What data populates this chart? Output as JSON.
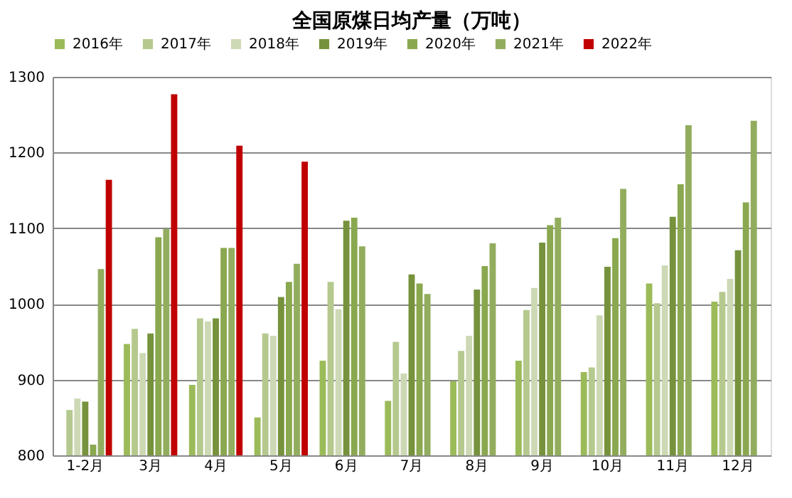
{
  "chart_data": {
    "type": "bar",
    "title": "全国原煤日均产量（万吨）",
    "categories": [
      "1-2月",
      "3月",
      "4月",
      "5月",
      "6月",
      "7月",
      "8月",
      "9月",
      "10月",
      "11月",
      "12月"
    ],
    "series": [
      {
        "name": "2016年",
        "color": "#9bbb59",
        "values": [
          null,
          947,
          893,
          850,
          925,
          872,
          898,
          925,
          910,
          1027,
          1003
        ]
      },
      {
        "name": "2017年",
        "color": "#b5c98e",
        "values": [
          860,
          967,
          981,
          961,
          1029,
          950,
          938,
          992,
          916,
          1001,
          1016
        ]
      },
      {
        "name": "2018年",
        "color": "#cdd9b5",
        "values": [
          875,
          935,
          977,
          958,
          993,
          908,
          958,
          1021,
          985,
          1051,
          1033
        ]
      },
      {
        "name": "2019年",
        "color": "#76923c",
        "values": [
          871,
          961,
          981,
          1009,
          1110,
          1039,
          1019,
          1081,
          1049,
          1115,
          1071
        ]
      },
      {
        "name": "2020年",
        "color": "#8aa84f",
        "values": [
          814,
          1088,
          1074,
          1029,
          1114,
          1027,
          1050,
          1104,
          1087,
          1158,
          1134
        ]
      },
      {
        "name": "2021年",
        "color": "#92ad5e",
        "values": [
          1046,
          1099,
          1074,
          1053,
          1076,
          1013,
          1080,
          1114,
          1152,
          1236,
          1242
        ]
      },
      {
        "name": "2022年",
        "color": "#c00000",
        "values": [
          1164,
          1277,
          1209,
          1188,
          null,
          null,
          null,
          null,
          null,
          null,
          null
        ]
      }
    ],
    "ylim": [
      800,
      1300
    ],
    "yticks": [
      800,
      900,
      1000,
      1100,
      1200,
      1300
    ],
    "grid": "y",
    "legend": "top"
  }
}
